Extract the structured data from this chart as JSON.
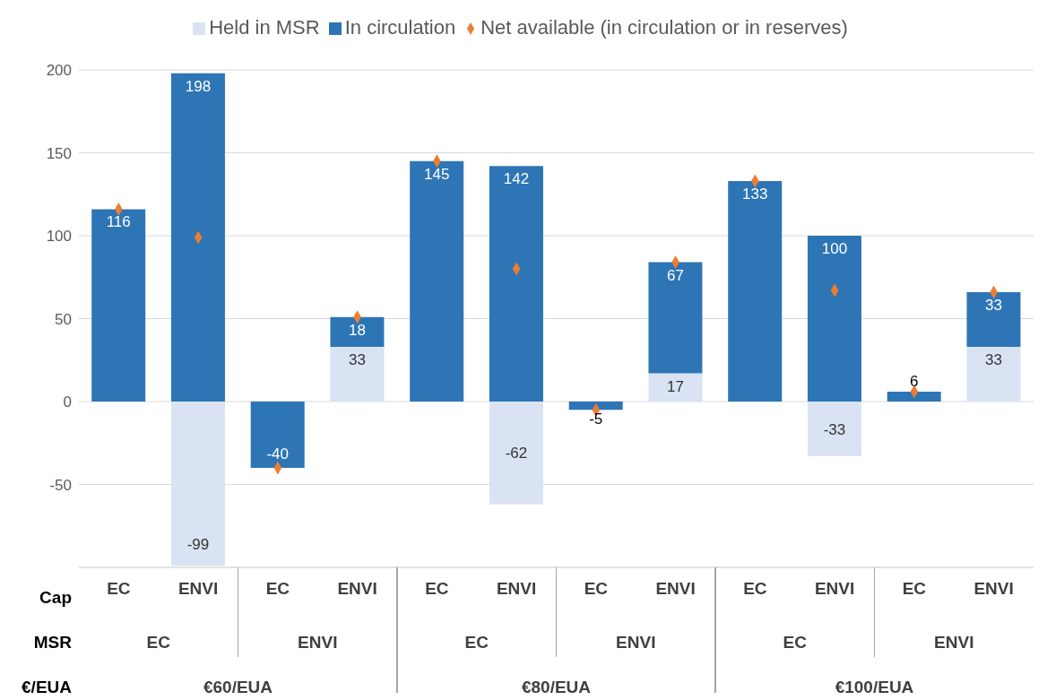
{
  "chart_data": {
    "type": "bar",
    "stacked": true,
    "categories": [
      "EC",
      "ENVI",
      "EC",
      "ENVI",
      "EC",
      "ENVI",
      "EC",
      "ENVI",
      "EC",
      "ENVI",
      "EC",
      "ENVI"
    ],
    "series": [
      {
        "name": "Held in MSR",
        "color": "#dae3f3",
        "values": [
          null,
          -99,
          null,
          33,
          null,
          -62,
          null,
          17,
          null,
          -33,
          null,
          33
        ],
        "value_labels": [
          null,
          "-99",
          null,
          "33",
          null,
          "-62",
          null,
          "17",
          null,
          "-33",
          null,
          "33"
        ]
      },
      {
        "name": "In circulation",
        "color": "#2e75b6",
        "values": [
          116,
          198,
          -40,
          18,
          145,
          142,
          -5,
          67,
          133,
          100,
          6,
          33
        ],
        "value_labels": [
          "116",
          "198",
          "-40",
          "18",
          "145",
          "142",
          "-5",
          "67",
          "133",
          "100",
          "6",
          "33"
        ]
      },
      {
        "name": "Net available (in circulation or in reserves)",
        "type": "scatter",
        "color": "#ed7d31",
        "marker": "diamond",
        "values": [
          116,
          99,
          -40,
          51,
          145,
          80,
          -5,
          84,
          133,
          67,
          6,
          66
        ]
      }
    ],
    "annotations": [
      "Cap",
      "MSR",
      "€/EUA",
      "EC",
      "ENVI",
      "EC",
      "ENVI",
      "EC",
      "ENVI",
      "€60/EUA",
      "€80/EUA",
      "€100/EUA"
    ],
    "ylim": [
      -100,
      200
    ],
    "yticks": [
      -50,
      0,
      50,
      100,
      150,
      200
    ],
    "grid": "y",
    "legend": "top"
  }
}
